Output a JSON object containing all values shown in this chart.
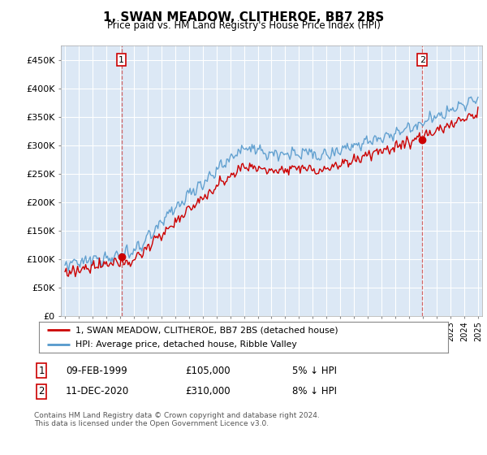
{
  "title": "1, SWAN MEADOW, CLITHEROE, BB7 2BS",
  "subtitle": "Price paid vs. HM Land Registry's House Price Index (HPI)",
  "legend_label_red": "1, SWAN MEADOW, CLITHEROE, BB7 2BS (detached house)",
  "legend_label_blue": "HPI: Average price, detached house, Ribble Valley",
  "annotation1_date": "09-FEB-1999",
  "annotation1_price": "£105,000",
  "annotation1_pct": "5% ↓ HPI",
  "annotation2_date": "11-DEC-2020",
  "annotation2_price": "£310,000",
  "annotation2_pct": "8% ↓ HPI",
  "footer": "Contains HM Land Registry data © Crown copyright and database right 2024.\nThis data is licensed under the Open Government Licence v3.0.",
  "ylim": [
    0,
    475000
  ],
  "yticks": [
    0,
    50000,
    100000,
    150000,
    200000,
    250000,
    300000,
    350000,
    400000,
    450000
  ],
  "ytick_labels": [
    "£0",
    "£50K",
    "£100K",
    "£150K",
    "£200K",
    "£250K",
    "£300K",
    "£350K",
    "£400K",
    "£450K"
  ],
  "bg_color": "#dce8f5",
  "grid_color": "#ffffff",
  "red_color": "#cc0000",
  "blue_color": "#5599cc",
  "sale1_year": 1999.1,
  "sale1_price": 105000,
  "sale2_year": 2020.95,
  "sale2_price": 310000,
  "vline1_year": 1999.1,
  "vline2_year": 2020.95,
  "xlim_left": 1994.7,
  "xlim_right": 2025.3
}
